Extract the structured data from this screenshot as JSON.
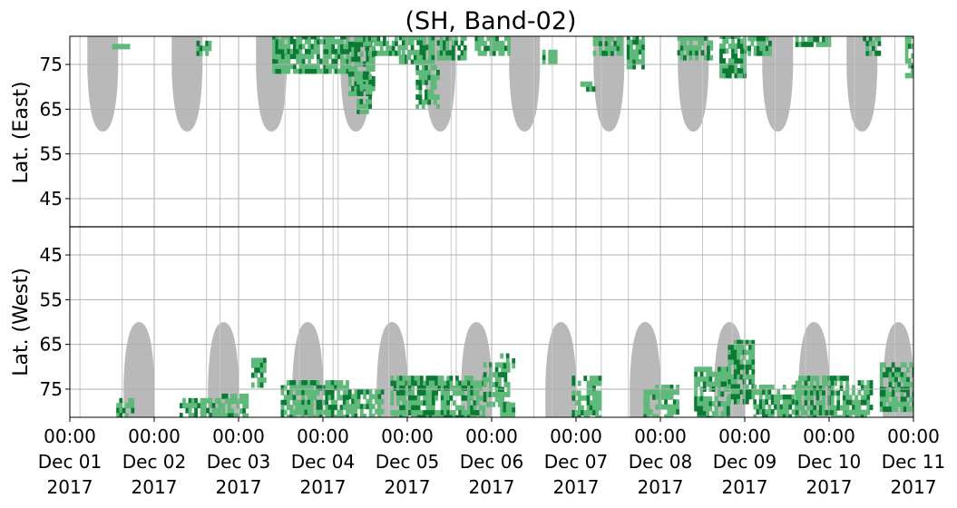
{
  "chart_data": {
    "type": "heatmap",
    "title": "(SH, Band-02)",
    "colors": {
      "data_light": "#5fb97a",
      "data_dark": "#0a7a34",
      "night_mask": "#b9b9b9",
      "grid": "#b0b0b0",
      "divider": "#000000"
    },
    "grid": true,
    "x_axis": {
      "range_days": [
        0,
        10
      ],
      "tick_days": [
        0,
        1,
        2,
        3,
        4,
        5,
        6,
        7,
        8,
        9,
        10
      ],
      "tick_labels": [
        [
          "00:00",
          "Dec 01",
          "2017"
        ],
        [
          "00:00",
          "Dec 02",
          "2017"
        ],
        [
          "00:00",
          "Dec 03",
          "2017"
        ],
        [
          "00:00",
          "Dec 04",
          "2017"
        ],
        [
          "00:00",
          "Dec 05",
          "2017"
        ],
        [
          "00:00",
          "Dec 06",
          "2017"
        ],
        [
          "00:00",
          "Dec 07",
          "2017"
        ],
        [
          "00:00",
          "Dec 08",
          "2017"
        ],
        [
          "00:00",
          "Dec 09",
          "2017"
        ],
        [
          "00:00",
          "Dec 10",
          "2017"
        ],
        [
          "00:00",
          "Dec 11",
          "2017"
        ]
      ]
    },
    "panels": [
      {
        "name": "east",
        "ylabel": "Lat. (East)",
        "lat_range": [
          38.7,
          81.3
        ],
        "orientation": "up",
        "tick_values": [
          45,
          55,
          65,
          75
        ],
        "tick_labels": [
          "45",
          "55",
          "65",
          "75"
        ],
        "night_mask_centers_day": [
          0.39,
          1.39,
          2.39,
          3.39,
          4.39,
          5.39,
          6.39,
          7.39,
          8.39,
          9.39
        ],
        "night_mask_lowest_lat": 60
      },
      {
        "name": "west",
        "ylabel": "Lat. (West)",
        "lat_range": [
          38.7,
          81.3
        ],
        "orientation": "down",
        "tick_values": [
          75,
          65,
          55,
          45
        ],
        "tick_labels": [
          "75",
          "65",
          "55",
          "45"
        ],
        "night_mask_centers_day": [
          0.82,
          1.82,
          2.82,
          3.82,
          4.82,
          5.82,
          6.82,
          7.82,
          8.82,
          9.82
        ],
        "night_mask_lowest_lat": 60
      }
    ],
    "gaps_day": [
      0.12,
      0.62,
      1.62,
      1.78,
      2.55,
      2.72,
      3.12,
      3.18,
      3.78,
      4.52,
      4.58,
      5.5,
      5.72,
      6.3,
      6.62,
      7.5,
      7.85,
      8.36,
      8.72,
      9.3,
      9.78
    ],
    "echo_blobs": [
      {
        "panel": "east",
        "day_start": 0.5,
        "day_end": 0.7,
        "lat_low": 78.5,
        "lat_high": 79.5,
        "intensity": 0.4
      },
      {
        "panel": "east",
        "day_start": 1.5,
        "day_end": 1.65,
        "lat_low": 77,
        "lat_high": 80,
        "intensity": 0.5
      },
      {
        "panel": "east",
        "day_start": 2.4,
        "day_end": 2.6,
        "lat_low": 74,
        "lat_high": 80,
        "intensity": 0.5
      },
      {
        "panel": "east",
        "day_start": 2.4,
        "day_end": 3.3,
        "lat_low": 73,
        "lat_high": 81,
        "intensity": 0.7
      },
      {
        "panel": "east",
        "day_start": 3.3,
        "day_end": 3.6,
        "lat_low": 68,
        "lat_high": 81,
        "intensity": 0.8
      },
      {
        "panel": "east",
        "day_start": 3.4,
        "day_end": 3.55,
        "lat_low": 64,
        "lat_high": 72,
        "intensity": 0.6
      },
      {
        "panel": "east",
        "day_start": 3.5,
        "day_end": 3.9,
        "lat_low": 77,
        "lat_high": 81,
        "intensity": 0.6
      },
      {
        "panel": "east",
        "day_start": 3.9,
        "day_end": 4.3,
        "lat_low": 75,
        "lat_high": 81,
        "intensity": 0.9
      },
      {
        "panel": "east",
        "day_start": 4.1,
        "day_end": 4.35,
        "lat_low": 65,
        "lat_high": 75,
        "intensity": 0.4
      },
      {
        "panel": "east",
        "day_start": 4.35,
        "day_end": 4.7,
        "lat_low": 76,
        "lat_high": 81,
        "intensity": 0.6
      },
      {
        "panel": "east",
        "day_start": 4.8,
        "day_end": 5.2,
        "lat_low": 77,
        "lat_high": 81,
        "intensity": 0.5
      },
      {
        "panel": "east",
        "day_start": 5.6,
        "day_end": 5.75,
        "lat_low": 75,
        "lat_high": 78,
        "intensity": 0.4
      },
      {
        "panel": "east",
        "day_start": 6.05,
        "day_end": 6.2,
        "lat_low": 69,
        "lat_high": 71,
        "intensity": 0.4
      },
      {
        "panel": "east",
        "day_start": 6.2,
        "day_end": 6.55,
        "lat_low": 77,
        "lat_high": 81,
        "intensity": 0.5
      },
      {
        "panel": "east",
        "day_start": 6.6,
        "day_end": 6.8,
        "lat_low": 74,
        "lat_high": 81,
        "intensity": 0.8
      },
      {
        "panel": "east",
        "day_start": 7.2,
        "day_end": 7.6,
        "lat_low": 76,
        "lat_high": 81,
        "intensity": 0.7
      },
      {
        "panel": "east",
        "day_start": 7.7,
        "day_end": 8.0,
        "lat_low": 72,
        "lat_high": 81,
        "intensity": 0.9
      },
      {
        "panel": "east",
        "day_start": 8.0,
        "day_end": 8.3,
        "lat_low": 77,
        "lat_high": 81,
        "intensity": 0.5
      },
      {
        "panel": "east",
        "day_start": 8.6,
        "day_end": 9.0,
        "lat_low": 79,
        "lat_high": 81,
        "intensity": 0.6
      },
      {
        "panel": "east",
        "day_start": 9.4,
        "day_end": 9.6,
        "lat_low": 77,
        "lat_high": 81,
        "intensity": 0.5
      },
      {
        "panel": "east",
        "day_start": 9.9,
        "day_end": 10.0,
        "lat_low": 72,
        "lat_high": 81,
        "intensity": 0.5
      },
      {
        "panel": "west",
        "day_start": 0.55,
        "day_end": 0.75,
        "lat_low": 77,
        "lat_high": 81,
        "intensity": 0.5
      },
      {
        "panel": "west",
        "day_start": 1.3,
        "day_end": 1.8,
        "lat_low": 77,
        "lat_high": 81,
        "intensity": 0.6
      },
      {
        "panel": "west",
        "day_start": 1.8,
        "day_end": 2.1,
        "lat_low": 76,
        "lat_high": 81,
        "intensity": 0.4
      },
      {
        "panel": "west",
        "day_start": 2.15,
        "day_end": 2.3,
        "lat_low": 68,
        "lat_high": 74,
        "intensity": 0.7
      },
      {
        "panel": "west",
        "day_start": 2.5,
        "day_end": 3.3,
        "lat_low": 73,
        "lat_high": 81,
        "intensity": 0.7
      },
      {
        "panel": "west",
        "day_start": 3.3,
        "day_end": 3.7,
        "lat_low": 75,
        "lat_high": 81,
        "intensity": 0.5
      },
      {
        "panel": "west",
        "day_start": 3.8,
        "day_end": 4.5,
        "lat_low": 72,
        "lat_high": 81,
        "intensity": 0.9
      },
      {
        "panel": "west",
        "day_start": 4.5,
        "day_end": 4.9,
        "lat_low": 72,
        "lat_high": 81,
        "intensity": 0.6
      },
      {
        "panel": "west",
        "day_start": 4.9,
        "day_end": 5.2,
        "lat_low": 69,
        "lat_high": 78,
        "intensity": 0.5
      },
      {
        "panel": "west",
        "day_start": 5.1,
        "day_end": 5.25,
        "lat_low": 78,
        "lat_high": 81,
        "intensity": 0.4
      },
      {
        "panel": "west",
        "day_start": 5.1,
        "day_end": 5.25,
        "lat_low": 67,
        "lat_high": 70,
        "intensity": 0.4
      },
      {
        "panel": "west",
        "day_start": 5.95,
        "day_end": 6.3,
        "lat_low": 72,
        "lat_high": 81,
        "intensity": 0.5
      },
      {
        "panel": "west",
        "day_start": 6.8,
        "day_end": 7.2,
        "lat_low": 74,
        "lat_high": 81,
        "intensity": 0.4
      },
      {
        "panel": "west",
        "day_start": 7.4,
        "day_end": 7.8,
        "lat_low": 70,
        "lat_high": 81,
        "intensity": 0.6
      },
      {
        "panel": "west",
        "day_start": 7.8,
        "day_end": 8.1,
        "lat_low": 64,
        "lat_high": 78,
        "intensity": 0.9
      },
      {
        "panel": "west",
        "day_start": 8.1,
        "day_end": 8.6,
        "lat_low": 74,
        "lat_high": 81,
        "intensity": 0.5
      },
      {
        "panel": "west",
        "day_start": 8.6,
        "day_end": 9.2,
        "lat_low": 72,
        "lat_high": 81,
        "intensity": 0.7
      },
      {
        "panel": "west",
        "day_start": 9.2,
        "day_end": 9.5,
        "lat_low": 73,
        "lat_high": 81,
        "intensity": 0.6
      },
      {
        "panel": "west",
        "day_start": 9.6,
        "day_end": 10.0,
        "lat_low": 69,
        "lat_high": 79,
        "intensity": 0.6
      }
    ]
  }
}
